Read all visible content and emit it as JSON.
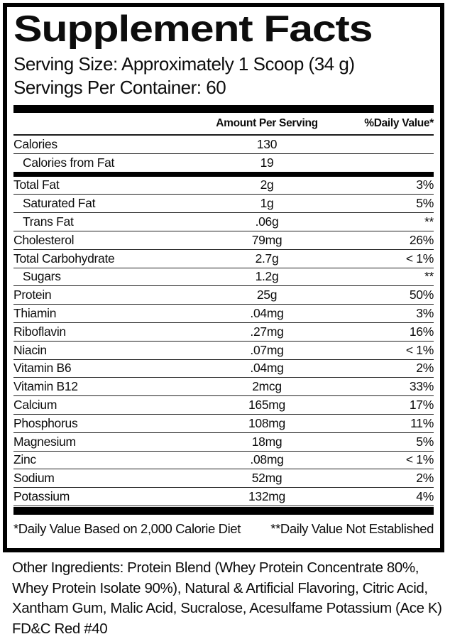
{
  "label": {
    "title": "Supplement Facts",
    "serving_size": "Serving Size: Approximately 1 Scoop (34 g)",
    "servings_per_container": "Servings Per Container: 60",
    "columns": {
      "amount": "Amount Per Serving",
      "daily_value": "%Daily Value*"
    },
    "footnotes": {
      "left": "*Daily Value Based on 2,000 Calorie Diet",
      "right": "**Daily Value Not Established"
    },
    "other_ingredients": "Other Ingredients: Protein Blend (Whey Protein Concentrate 80%, Whey Protein Isolate 90%), Natural & Artificial Flavoring, Citric Acid, Xantham Gum, Malic Acid, Sucralose, Acesulfame Potassium (Ace K) FD&C Red #40"
  },
  "table": {
    "rows": [
      {
        "name": "Calories",
        "amount": "130",
        "dv": "",
        "indent": false,
        "thick_after": false
      },
      {
        "name": "Calories from Fat",
        "amount": "19",
        "dv": "",
        "indent": true,
        "thick_after": true
      },
      {
        "name": "Total Fat",
        "amount": "2g",
        "dv": "3%",
        "indent": false,
        "thick_after": false
      },
      {
        "name": "Saturated Fat",
        "amount": "1g",
        "dv": "5%",
        "indent": true,
        "thick_after": false
      },
      {
        "name": "Trans Fat",
        "amount": ".06g",
        "dv": "**",
        "indent": true,
        "thick_after": false
      },
      {
        "name": "Cholesterol",
        "amount": "79mg",
        "dv": "26%",
        "indent": false,
        "thick_after": false
      },
      {
        "name": "Total Carbohydrate",
        "amount": "2.7g",
        "dv": "< 1%",
        "indent": false,
        "thick_after": false
      },
      {
        "name": "Sugars",
        "amount": "1.2g",
        "dv": "**",
        "indent": true,
        "thick_after": false
      },
      {
        "name": "Protein",
        "amount": "25g",
        "dv": "50%",
        "indent": false,
        "thick_after": false
      },
      {
        "name": "Thiamin",
        "amount": ".04mg",
        "dv": "3%",
        "indent": false,
        "thick_after": false
      },
      {
        "name": "Riboflavin",
        "amount": ".27mg",
        "dv": "16%",
        "indent": false,
        "thick_after": false
      },
      {
        "name": "Niacin",
        "amount": ".07mg",
        "dv": "< 1%",
        "indent": false,
        "thick_after": false
      },
      {
        "name": "Vitamin B6",
        "amount": ".04mg",
        "dv": "2%",
        "indent": false,
        "thick_after": false
      },
      {
        "name": "Vitamin B12",
        "amount": "2mcg",
        "dv": "33%",
        "indent": false,
        "thick_after": false
      },
      {
        "name": "Calcium",
        "amount": "165mg",
        "dv": "17%",
        "indent": false,
        "thick_after": false
      },
      {
        "name": "Phosphorus",
        "amount": "108mg",
        "dv": "11%",
        "indent": false,
        "thick_after": false
      },
      {
        "name": "Magnesium",
        "amount": "18mg",
        "dv": "5%",
        "indent": false,
        "thick_after": false
      },
      {
        "name": "Zinc",
        "amount": ".08mg",
        "dv": "< 1%",
        "indent": false,
        "thick_after": false
      },
      {
        "name": "Sodium",
        "amount": "52mg",
        "dv": "2%",
        "indent": false,
        "thick_after": false
      },
      {
        "name": "Potassium",
        "amount": "132mg",
        "dv": "4%",
        "indent": false,
        "thick_after": false
      }
    ]
  },
  "colors": {
    "ink": "#000000",
    "line": "#1f1f1f",
    "background": "#ffffff"
  }
}
